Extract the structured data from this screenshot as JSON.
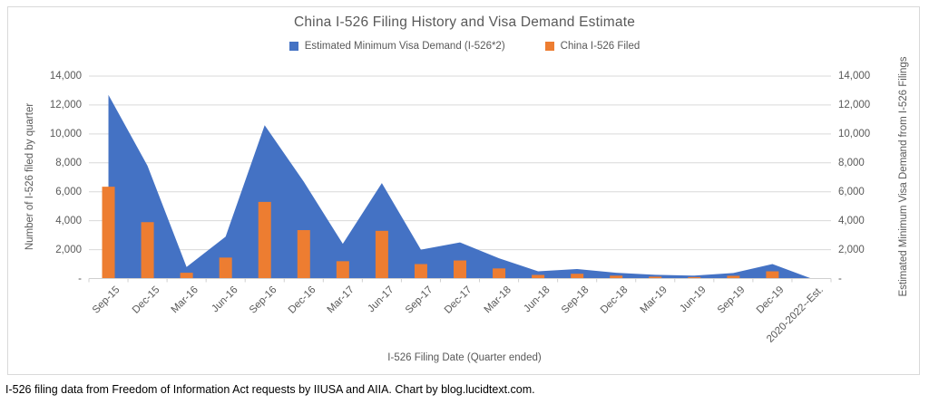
{
  "chart": {
    "title": "China I-526 Filing History and Visa Demand Estimate",
    "legend": [
      {
        "label": "Estimated Minimum Visa Demand (I-526*2)",
        "color": "#4472C4"
      },
      {
        "label": "China I-526 Filed",
        "color": "#ED7D31"
      }
    ],
    "y_left_title": "Number of I-526 filed by quarter",
    "y_right_title": "Estimated Minimum Visa Demand from I-526 Filings",
    "x_title": "I-526 Filing Date (Quarter ended)",
    "y_ticks": [
      "14,000",
      "12,000",
      "10,000",
      "8,000",
      "6,000",
      "4,000",
      "2,000",
      "-"
    ]
  },
  "chart_data": {
    "type": "combo (area + bar)",
    "title": "China I-526 Filing History and Visa Demand Estimate",
    "xlabel": "I-526 Filing Date (Quarter ended)",
    "ylabel_left": "Number of I-526 filed by quarter",
    "ylabel_right": "Estimated Minimum Visa Demand from I-526 Filings",
    "ylim": [
      0,
      14000
    ],
    "grid": "horizontal, every 2000",
    "legend_position": "top-center",
    "categories": [
      "Sep-15",
      "Dec-15",
      "Mar-16",
      "Jun-16",
      "Sep-16",
      "Dec-16",
      "Mar-17",
      "Jun-17",
      "Sep-17",
      "Dec-17",
      "Mar-18",
      "Jun-18",
      "Sep-18",
      "Dec-18",
      "Mar-19",
      "Jun-19",
      "Sep-19",
      "Dec-19",
      "2020-2022--Est."
    ],
    "series": [
      {
        "name": "Estimated Minimum Visa Demand (I-526*2)",
        "type": "area",
        "color": "#4472C4",
        "values": [
          12700,
          7800,
          800,
          2900,
          10600,
          6700,
          2400,
          6600,
          2000,
          2500,
          1400,
          500,
          660,
          400,
          260,
          200,
          380,
          1000,
          0
        ]
      },
      {
        "name": "China I-526 Filed",
        "type": "bar",
        "color": "#ED7D31",
        "values": [
          6350,
          3900,
          400,
          1450,
          5300,
          3350,
          1200,
          3300,
          1000,
          1250,
          700,
          250,
          330,
          200,
          130,
          100,
          190,
          500,
          0
        ]
      }
    ]
  },
  "footer": "I-526 filing data from Freedom of Information Act requests by IIUSA and AIIA. Chart by blog.lucidtext.com."
}
